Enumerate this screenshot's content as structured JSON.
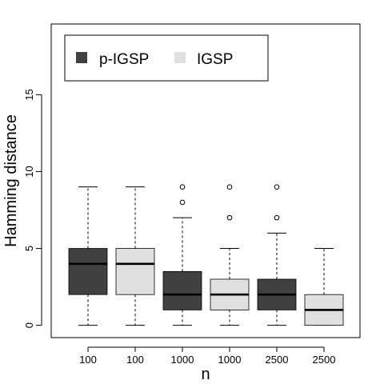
{
  "chart_data": {
    "type": "box",
    "xlabel": "n",
    "ylabel": "Hamming distance",
    "ylim": [
      -0.8,
      19.6
    ],
    "yticks": [
      0,
      5,
      10,
      15
    ],
    "categories": [
      "100",
      "100",
      "1000",
      "1000",
      "2500",
      "2500"
    ],
    "legend": {
      "placement": "top-left",
      "entries": [
        {
          "label": "p-IGSP",
          "color": "#404040"
        },
        {
          "label": "IGSP",
          "color": "#e0e0e0"
        }
      ]
    },
    "boxes": [
      {
        "category": "100",
        "group": "p-IGSP",
        "color": "#404040",
        "whisker_low": 0,
        "q1": 2,
        "median": 4,
        "q3": 5,
        "whisker_high": 9,
        "outliers": []
      },
      {
        "category": "100",
        "group": "IGSP",
        "color": "#e0e0e0",
        "whisker_low": 0,
        "q1": 2,
        "median": 4,
        "q3": 5,
        "whisker_high": 9,
        "outliers": []
      },
      {
        "category": "1000",
        "group": "p-IGSP",
        "color": "#404040",
        "whisker_low": 0,
        "q1": 1,
        "median": 2,
        "q3": 3.5,
        "whisker_high": 7,
        "outliers": [
          8,
          9
        ]
      },
      {
        "category": "1000",
        "group": "IGSP",
        "color": "#e0e0e0",
        "whisker_low": 0,
        "q1": 1,
        "median": 2,
        "q3": 3,
        "whisker_high": 5,
        "outliers": [
          7,
          9
        ]
      },
      {
        "category": "2500",
        "group": "p-IGSP",
        "color": "#404040",
        "whisker_low": 0,
        "q1": 1,
        "median": 2,
        "q3": 3,
        "whisker_high": 6,
        "outliers": [
          7,
          9
        ]
      },
      {
        "category": "2500",
        "group": "IGSP",
        "color": "#e0e0e0",
        "whisker_low": 0,
        "q1": 0,
        "median": 1,
        "q3": 2,
        "whisker_high": 5,
        "outliers": []
      }
    ]
  }
}
